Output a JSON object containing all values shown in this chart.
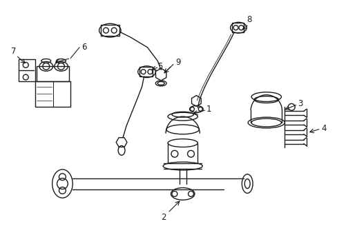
{
  "bg_color": "#ffffff",
  "line_color": "#1a1a1a",
  "fig_width": 4.89,
  "fig_height": 3.6,
  "dpi": 100,
  "lw": 1.0,
  "components": {
    "label_fontsize": 8.5
  }
}
